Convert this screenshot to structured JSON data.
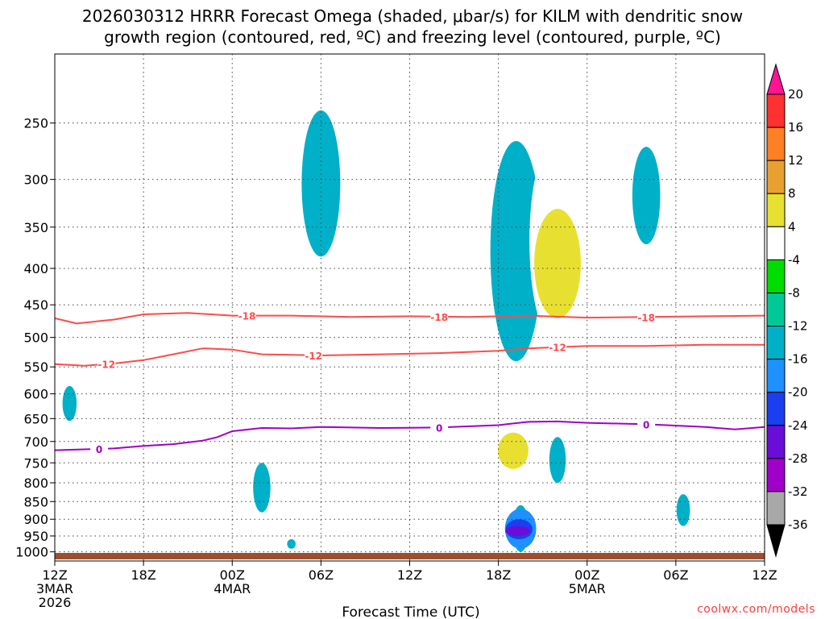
{
  "title_line1": "2026030312 HRRR Forecast Omega (shaded, μbar/s) for KILM with dendritic snow",
  "title_line2": "growth region (contoured, red, ºC) and freezing level (contoured, purple, ºC)",
  "credit": "coolwx.com/models",
  "colors": {
    "dgz": "#ff4a4a",
    "freezing": "#a000c8",
    "ground": "#9c4f2e"
  },
  "chart_data": {
    "type": "heatmap",
    "title": "2026030312 HRRR Forecast Omega (shaded, μbar/s) for KILM with dendritic snow growth region (contoured, red, ºC) and freezing level (contoured, purple, ºC)",
    "xlabel": "Forecast Time (UTC)",
    "ylabel": "Pressure (hPa)",
    "xlim": [
      0,
      48
    ],
    "ylim": [
      1030,
      200
    ],
    "y_ticks": [
      250,
      300,
      350,
      400,
      450,
      500,
      550,
      600,
      650,
      700,
      750,
      800,
      850,
      900,
      950,
      1000
    ],
    "x_ticks": [
      {
        "hour": 0,
        "label": "12Z",
        "date": "3MAR",
        "year": "2026"
      },
      {
        "hour": 6,
        "label": "18Z"
      },
      {
        "hour": 12,
        "label": "00Z",
        "date": "4MAR"
      },
      {
        "hour": 18,
        "label": "06Z"
      },
      {
        "hour": 24,
        "label": "12Z"
      },
      {
        "hour": 30,
        "label": "18Z"
      },
      {
        "hour": 36,
        "label": "00Z",
        "date": "5MAR"
      },
      {
        "hour": 42,
        "label": "06Z"
      },
      {
        "hour": 48,
        "label": "12Z"
      }
    ],
    "colorbar": {
      "labels": [
        "20",
        "16",
        "12",
        "8",
        "4",
        "-4",
        "-8",
        "-12",
        "-16",
        "-20",
        "-24",
        "-28",
        "-32",
        "-36"
      ],
      "bins": [
        {
          "color": "#ff1493"
        },
        {
          "color": "#ff3030"
        },
        {
          "color": "#ff7f24"
        },
        {
          "color": "#e8a030"
        },
        {
          "color": "#e8e030"
        },
        {
          "color": "#ffffff"
        },
        {
          "color": "#00dc00"
        },
        {
          "color": "#00c896"
        },
        {
          "color": "#00b0c8"
        },
        {
          "color": "#1e90ff"
        },
        {
          "color": "#1a3ff0"
        },
        {
          "color": "#6a0dd8"
        },
        {
          "color": "#a000c8"
        },
        {
          "color": "#a8a8a8"
        },
        {
          "color": "#000000"
        }
      ]
    },
    "contours": [
      {
        "name": "-18C isotherm",
        "color": "#ff4a4a",
        "label": "-18",
        "label_hours": [
          13,
          26,
          40
        ],
        "points": [
          [
            0,
            470
          ],
          [
            1.5,
            478
          ],
          [
            4,
            472
          ],
          [
            6,
            464
          ],
          [
            9,
            462
          ],
          [
            12,
            466
          ],
          [
            16,
            466
          ],
          [
            20,
            468
          ],
          [
            24,
            467
          ],
          [
            28,
            468
          ],
          [
            32,
            466
          ],
          [
            36,
            469
          ],
          [
            40,
            468
          ],
          [
            44,
            467
          ],
          [
            48,
            466
          ]
        ]
      },
      {
        "name": "-12C isotherm",
        "color": "#ff4a4a",
        "label": "-12",
        "label_hours": [
          3.5,
          17.5,
          34
        ],
        "points": [
          [
            0,
            545
          ],
          [
            2,
            548
          ],
          [
            4,
            544
          ],
          [
            6,
            538
          ],
          [
            8,
            528
          ],
          [
            10,
            518
          ],
          [
            12,
            520
          ],
          [
            14,
            528
          ],
          [
            18,
            530
          ],
          [
            22,
            528
          ],
          [
            26,
            526
          ],
          [
            30,
            522
          ],
          [
            32,
            518
          ],
          [
            36,
            514
          ],
          [
            40,
            514
          ],
          [
            44,
            512
          ],
          [
            48,
            512
          ]
        ]
      },
      {
        "name": "0C freezing level",
        "color": "#a000c8",
        "label": "0",
        "label_hours": [
          3,
          26,
          40
        ],
        "points": [
          [
            0,
            720
          ],
          [
            2,
            718
          ],
          [
            4,
            716
          ],
          [
            6,
            710
          ],
          [
            8,
            706
          ],
          [
            10,
            698
          ],
          [
            11,
            690
          ],
          [
            12,
            677
          ],
          [
            14,
            670
          ],
          [
            16,
            671
          ],
          [
            18,
            668
          ],
          [
            22,
            670
          ],
          [
            26,
            669
          ],
          [
            30,
            664
          ],
          [
            32,
            657
          ],
          [
            34,
            656
          ],
          [
            36,
            659
          ],
          [
            40,
            662
          ],
          [
            44,
            668
          ],
          [
            46,
            673
          ],
          [
            48,
            668
          ]
        ]
      }
    ],
    "omega_regions": [
      {
        "value_range": [
          -8,
          -4
        ],
        "center_hour": 18,
        "pressure_range": [
          240,
          385
        ]
      },
      {
        "value_range": [
          -8,
          -4
        ],
        "center_hour": 31.2,
        "pressure_range": [
          265,
          540
        ]
      },
      {
        "value_range": [
          4,
          8
        ],
        "center_hour": 33.8,
        "pressure_range": [
          265,
          505
        ]
      },
      {
        "value_range": [
          8,
          12
        ],
        "center_hour": 34.0,
        "pressure_range": [
          330,
          470
        ]
      },
      {
        "value_range": [
          -8,
          -4
        ],
        "center_hour": 40,
        "pressure_range": [
          270,
          370
        ]
      },
      {
        "value_range": [
          4,
          8
        ],
        "center_hour": 2,
        "pressure_range": [
          430,
          485
        ]
      },
      {
        "value_range": [
          4,
          8
        ],
        "center_hour": 8.5,
        "pressure_range": [
          395,
          510
        ]
      },
      {
        "value_range": [
          4,
          8
        ],
        "center_hour": 18,
        "pressure_range": [
          490,
          605
        ]
      },
      {
        "value_range": [
          -8,
          -4
        ],
        "center_hour": 1,
        "pressure_range": [
          585,
          655
        ]
      },
      {
        "value_range": [
          4,
          8
        ],
        "center_hour": 30.5,
        "pressure_range": [
          640,
          790
        ]
      },
      {
        "value_range": [
          8,
          12
        ],
        "center_hour": 31,
        "pressure_range": [
          680,
          765
        ]
      },
      {
        "value_range": [
          -8,
          -4
        ],
        "center_hour": 34,
        "pressure_range": [
          690,
          800
        ]
      },
      {
        "value_range": [
          -8,
          -4
        ],
        "center_hour": 14,
        "pressure_range": [
          750,
          880
        ]
      },
      {
        "value_range": [
          -8,
          -4
        ],
        "center_hour": 42.5,
        "pressure_range": [
          830,
          920
        ]
      },
      {
        "value_range": [
          -8,
          -4
        ],
        "center_hour": 31.5,
        "pressure_range": [
          860,
          1000
        ]
      },
      {
        "value_range": [
          -12,
          -8
        ],
        "center_hour": 31.5,
        "pressure_range": [
          870,
          990
        ]
      },
      {
        "value_range": [
          -16,
          -12
        ],
        "center_hour": 31.4,
        "pressure_range": [
          900,
          960
        ]
      },
      {
        "value_range": [
          -20,
          -16
        ],
        "center_hour": 31.3,
        "pressure_range": [
          920,
          950
        ]
      },
      {
        "value_range": [
          4,
          8
        ],
        "center_hour": 33.5,
        "pressure_range": [
          880,
          940
        ]
      },
      {
        "value_range": [
          -8,
          -4
        ],
        "center_hour": 16,
        "pressure_range": [
          960,
          990
        ]
      },
      {
        "value_range": [
          4,
          8
        ],
        "center_hour": 28,
        "pressure_range": [
          940,
          960
        ]
      }
    ]
  }
}
